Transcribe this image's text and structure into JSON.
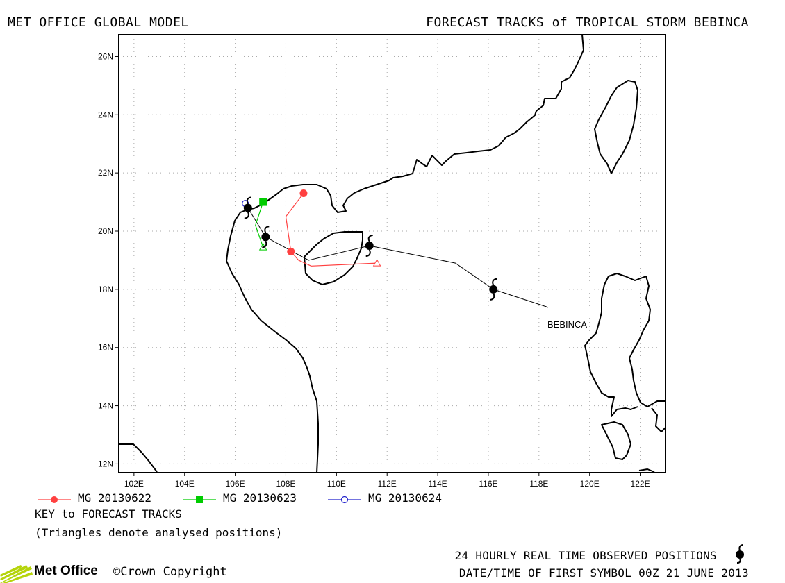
{
  "header": {
    "left_title": "MET OFFICE GLOBAL MODEL",
    "right_title": "FORECAST TRACKS of TROPICAL STORM BEBINCA"
  },
  "map": {
    "lon_ticks": [
      "102E",
      "104E",
      "106E",
      "108E",
      "110E",
      "112E",
      "114E",
      "116E",
      "118E",
      "120E",
      "122E"
    ],
    "lat_ticks": [
      "12N",
      "14N",
      "16N",
      "18N",
      "20N",
      "22N",
      "24N",
      "26N"
    ],
    "storm_label": "BEBINCA",
    "observed_track": [
      {
        "lon": 118.3,
        "lat": 17.4
      },
      {
        "lon": 116.2,
        "lat": 18.0
      },
      {
        "lon": 114.7,
        "lat": 18.9
      },
      {
        "lon": 111.3,
        "lat": 19.5
      },
      {
        "lon": 108.9,
        "lat": 19.0
      },
      {
        "lon": 107.2,
        "lat": 19.8
      },
      {
        "lon": 106.5,
        "lat": 20.8
      }
    ],
    "observed_symbols": [
      {
        "lon": 116.2,
        "lat": 18.0
      },
      {
        "lon": 111.3,
        "lat": 19.5
      },
      {
        "lon": 107.2,
        "lat": 19.8
      },
      {
        "lon": 106.5,
        "lat": 20.8
      }
    ],
    "colors": {
      "red": "#ff4040",
      "green": "#00cc00",
      "blue": "#2020cc",
      "coast": "#000000",
      "grid": "#aaaaaa"
    }
  },
  "legend": {
    "items": [
      {
        "label": "MG 20130622",
        "marker": "filled-circle",
        "color": "#ff4040"
      },
      {
        "label": "MG 20130623",
        "marker": "filled-square",
        "color": "#00cc00"
      },
      {
        "label": "MG 20130624",
        "marker": "open-circle",
        "color": "#2020cc"
      }
    ],
    "key_title": "KEY to FORECAST TRACKS",
    "triangle_note": "(Triangles denote analysed positions)"
  },
  "footer": {
    "observed_positions": "24 HOURLY REAL TIME OBSERVED POSITIONS",
    "first_symbol": "DATE/TIME OF FIRST SYMBOL 00Z 21 JUNE 2013",
    "logo_text": "Met Office",
    "copyright": "©Crown Copyright"
  },
  "forecasts": [
    {
      "label": "MG 20130622",
      "color": "#ff4040",
      "marker": "filled-circle",
      "points": [
        {
          "lon": 111.6,
          "lat": 18.9
        },
        {
          "lon": 109.0,
          "lat": 18.8
        },
        {
          "lon": 108.5,
          "lat": 19.0
        },
        {
          "lon": 108.2,
          "lat": 19.3
        },
        {
          "lon": 108.0,
          "lat": 20.5
        },
        {
          "lon": 108.7,
          "lat": 21.3
        }
      ],
      "symbols": [
        {
          "lon": 108.2,
          "lat": 19.3
        },
        {
          "lon": 108.7,
          "lat": 21.3
        }
      ]
    },
    {
      "label": "MG 20130623",
      "color": "#00cc00",
      "marker": "filled-square",
      "points": [
        {
          "lon": 107.1,
          "lat": 19.45
        },
        {
          "lon": 106.8,
          "lat": 20.2
        },
        {
          "lon": 107.1,
          "lat": 21.0
        }
      ],
      "symbols": [
        {
          "lon": 107.1,
          "lat": 21.0
        }
      ]
    },
    {
      "label": "MG 20130624",
      "color": "#2020cc",
      "marker": "open-circle",
      "points": [
        {
          "lon": 106.4,
          "lat": 20.95
        }
      ],
      "symbols": []
    }
  ]
}
